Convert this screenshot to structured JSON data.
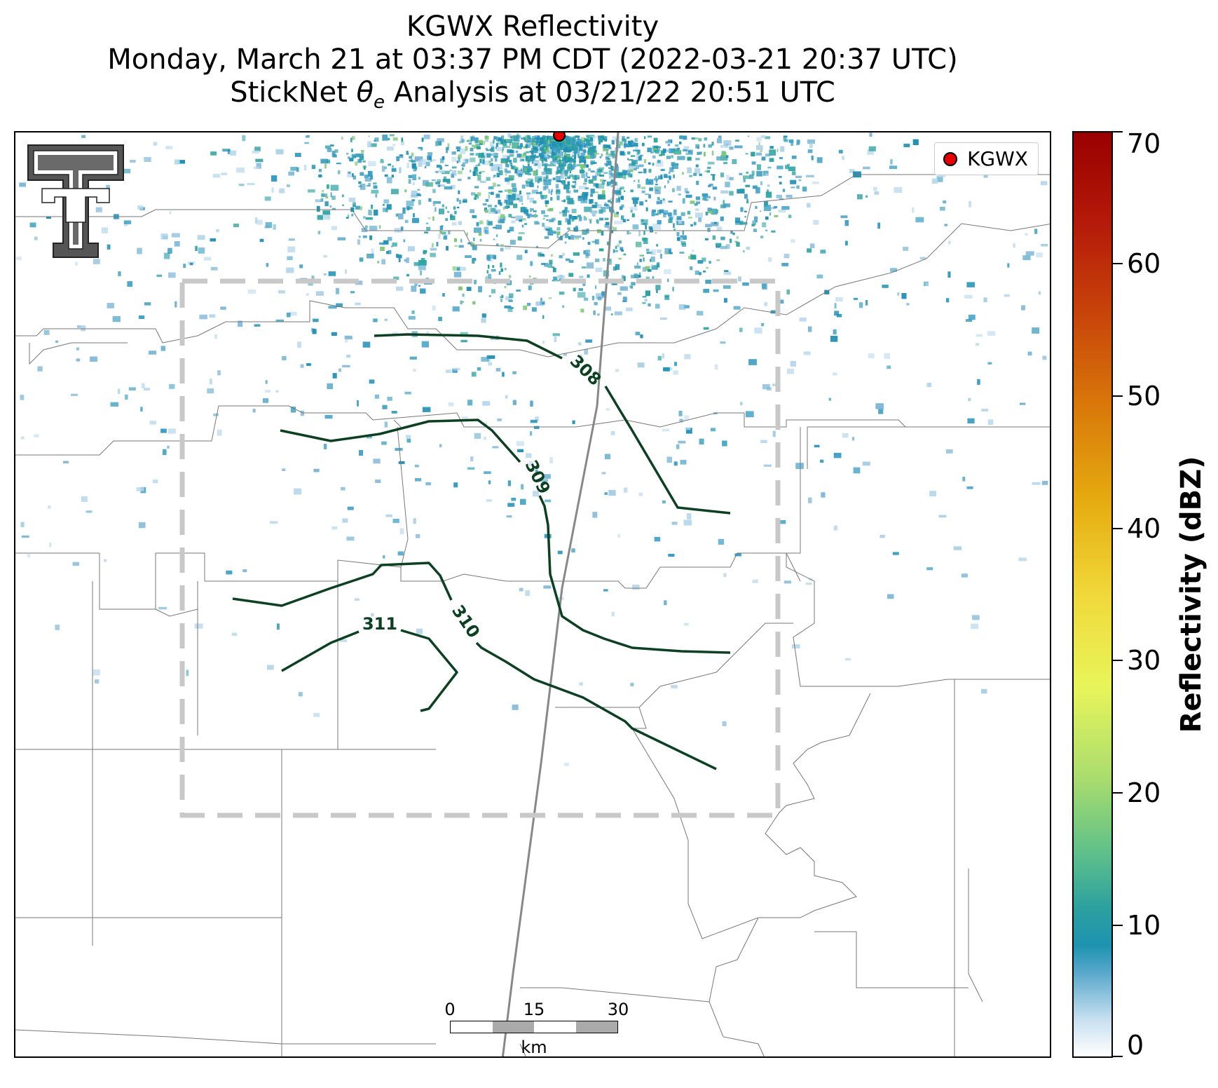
{
  "title": {
    "line1": "KGWX Reflectivity",
    "line2": "Monday, March 21 at 03:37 PM CDT (2022-03-21 20:37 UTC)",
    "line3_prefix": "StickNet ",
    "line3_theta": "θ",
    "line3_sub": "e",
    "line3_suffix": " Analysis at 03/21/22 20:51 UTC"
  },
  "legend": {
    "station_label": "KGWX",
    "station_color": "#e60000"
  },
  "scalebar": {
    "ticks": [
      "0",
      "15",
      "30"
    ],
    "unit": "km"
  },
  "colorbar": {
    "label": "Reflectivity (dBZ)",
    "ticks": [
      "0",
      "10",
      "20",
      "30",
      "40",
      "50",
      "60",
      "70"
    ],
    "min": 0,
    "max": 70
  },
  "contours": {
    "color": "#0b4020",
    "labels": [
      "308",
      "309",
      "310",
      "311"
    ]
  },
  "logo": "texas-tech-double-t-logo"
}
